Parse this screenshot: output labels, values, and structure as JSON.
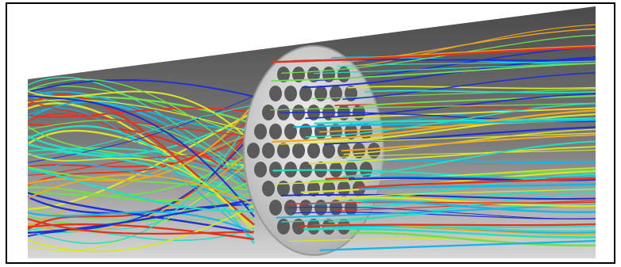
{
  "scene": {
    "subject": "flow-streamlines-through-perforated-plate",
    "streamline_colors": [
      "#1f2fd6",
      "#16b7e8",
      "#22e0c0",
      "#6fe04a",
      "#d8e52a",
      "#f2a81c",
      "#e8321e"
    ],
    "background_gradient": [
      "#4d4d4d",
      "#8a8a8a",
      "#dcdcdc"
    ],
    "plate_color": "#d9d9d9",
    "hole_color": "#5a5a5a"
  }
}
